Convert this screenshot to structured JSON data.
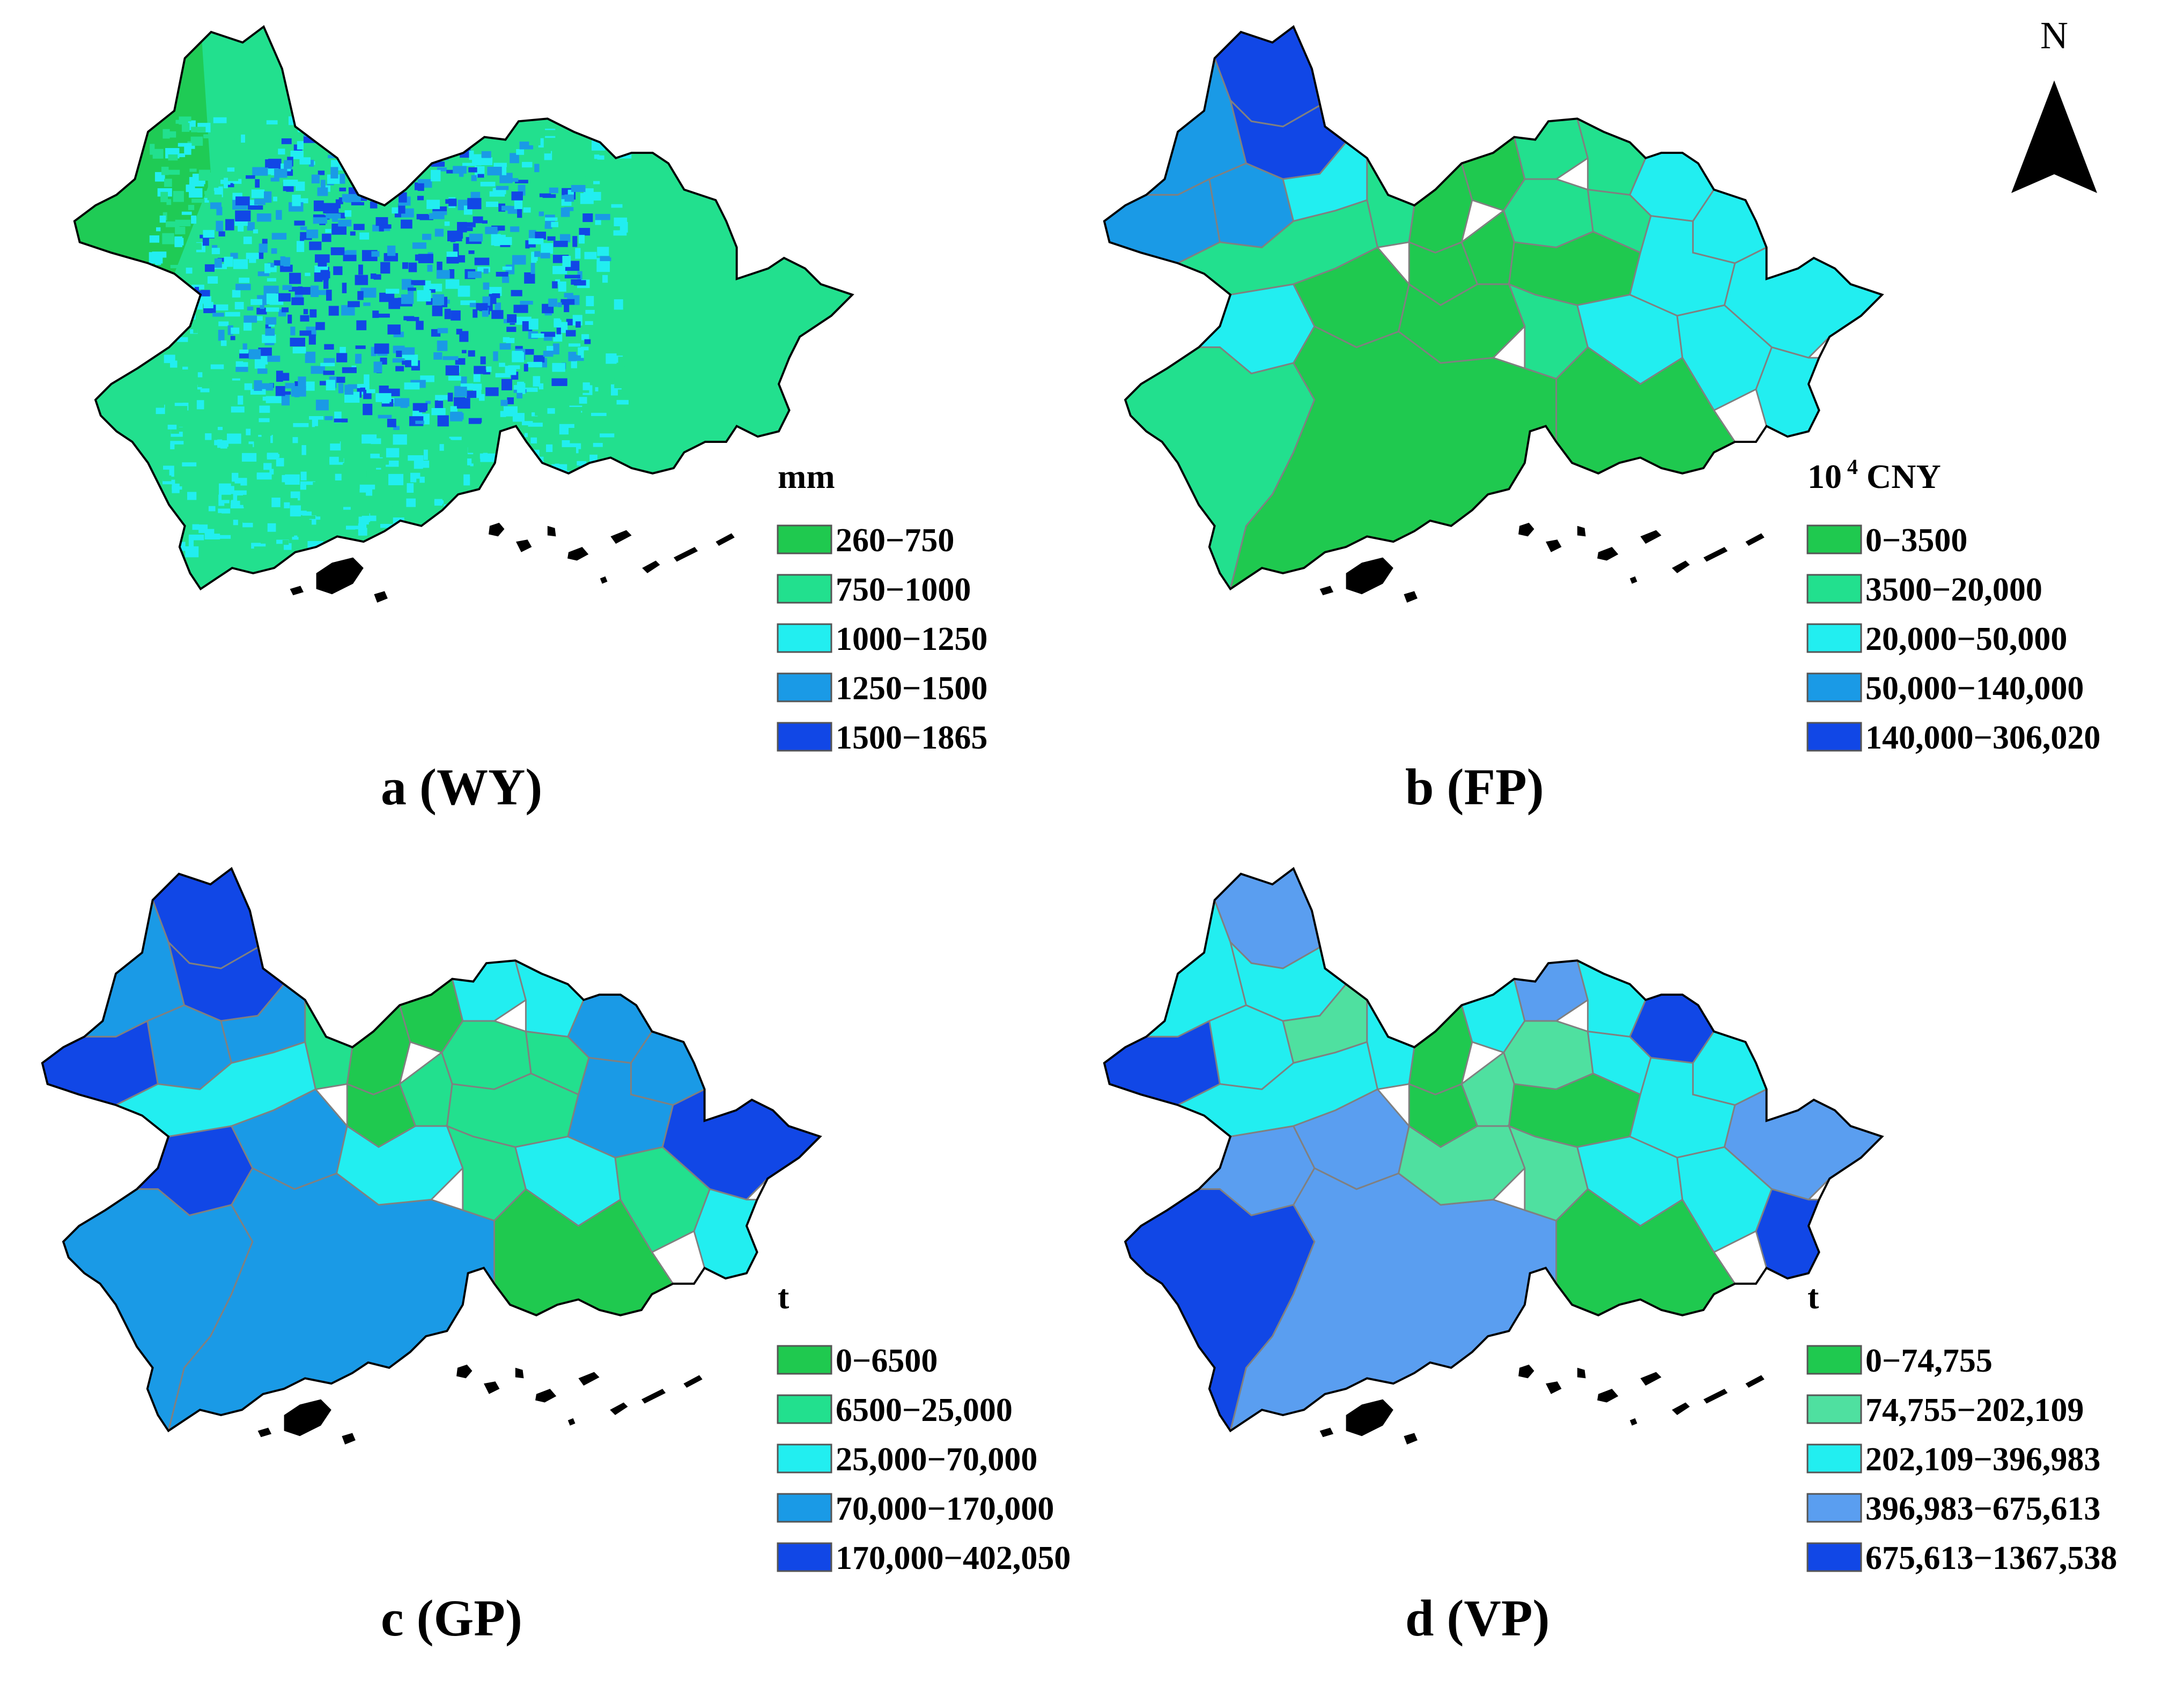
{
  "north_arrow": {
    "label": "N"
  },
  "panels": [
    {
      "id": "a",
      "caption": "a (WY)",
      "legend_title": "mm",
      "legend_title_sup": "",
      "rendering": "raster",
      "classes": [
        {
          "label": "260−750",
          "color": "#1fc94f"
        },
        {
          "label": "750−1000",
          "color": "#22e08e"
        },
        {
          "label": "1000−1250",
          "color": "#22eef0"
        },
        {
          "label": "1250−1500",
          "color": "#1a9ae6"
        },
        {
          "label": "1500−1865",
          "color": "#1147e6"
        }
      ]
    },
    {
      "id": "b",
      "caption": "b (FP)",
      "legend_title": " CNY",
      "legend_title_prefix": "10",
      "legend_title_sup": "4",
      "rendering": "districts",
      "classes": [
        {
          "label": "0−3500",
          "color": "#1fc94f"
        },
        {
          "label": "3500−20,000",
          "color": "#22e08e"
        },
        {
          "label": "20,000−50,000",
          "color": "#22eef0"
        },
        {
          "label": "50,000−140,000",
          "color": "#1a9ae6"
        },
        {
          "label": "140,000−306,020",
          "color": "#1147e6"
        }
      ]
    },
    {
      "id": "c",
      "caption": "c (GP)",
      "legend_title": "t",
      "legend_title_sup": "",
      "rendering": "districts",
      "classes": [
        {
          "label": "0−6500",
          "color": "#1fc94f"
        },
        {
          "label": "6500−25,000",
          "color": "#22e08e"
        },
        {
          "label": "25,000−70,000",
          "color": "#22eef0"
        },
        {
          "label": "70,000−170,000",
          "color": "#1a9ae6"
        },
        {
          "label": "170,000−402,050",
          "color": "#1147e6"
        }
      ]
    },
    {
      "id": "d",
      "caption": "d (VP)",
      "legend_title": "t",
      "legend_title_sup": "",
      "rendering": "districts",
      "classes": [
        {
          "label": "0−74,755",
          "color": "#1fc94f"
        },
        {
          "label": "74,755−202,109",
          "color": "#4fe0a0"
        },
        {
          "label": "202,109−396,983",
          "color": "#22eef0"
        },
        {
          "label": "396,983−675,613",
          "color": "#5a9ef0"
        },
        {
          "label": "675,613−1367,538",
          "color": "#1147e6"
        }
      ]
    }
  ],
  "district_classes": {
    "b": [
      4,
      4,
      3,
      3,
      3,
      2,
      1,
      0,
      0,
      0,
      1,
      1,
      2,
      2,
      1,
      1,
      0,
      0,
      2,
      2,
      1,
      2,
      0,
      0,
      1,
      2,
      2,
      2,
      0,
      1
    ],
    "c": [
      4,
      4,
      3,
      4,
      3,
      3,
      1,
      0,
      0,
      0,
      2,
      2,
      3,
      3,
      1,
      1,
      1,
      1,
      3,
      4,
      2,
      4,
      3,
      2,
      1,
      2,
      1,
      2,
      0,
      3
    ],
    "d": [
      3,
      2,
      2,
      4,
      2,
      1,
      2,
      0,
      2,
      0,
      3,
      2,
      4,
      2,
      1,
      2,
      1,
      0,
      2,
      3,
      2,
      3,
      3,
      1,
      1,
      2,
      2,
      4,
      0,
      4
    ]
  }
}
